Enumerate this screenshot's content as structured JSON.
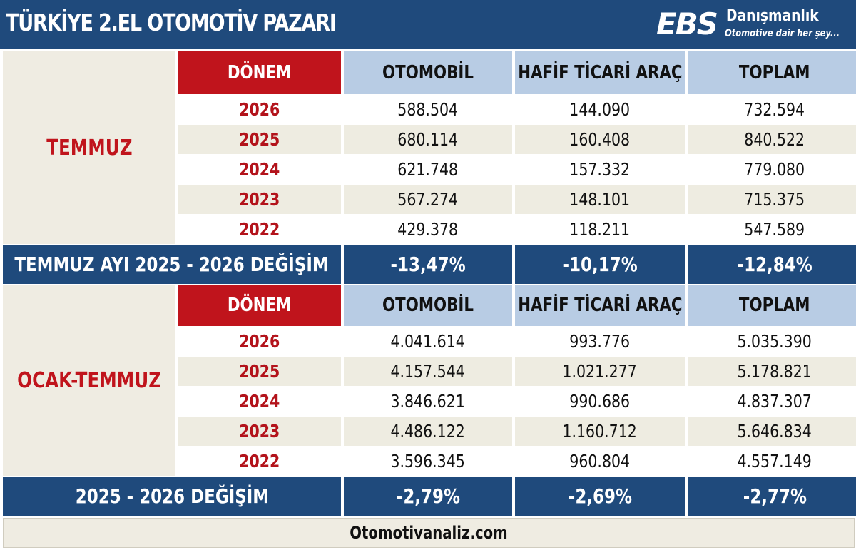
{
  "header": {
    "title": "TÜRKİYE 2.EL OTOMOTİV PAZARI",
    "logo": {
      "mark": "EBS",
      "brand": "Danışmanlık",
      "slogan": "Otomotive dair her şey..."
    }
  },
  "columns": {
    "period": "DÖNEM",
    "car": "OTOMOBİL",
    "lcv": "HAFİF TİCARİ ARAÇ",
    "total": "TOPLAM"
  },
  "sections": [
    {
      "label": "TEMMUZ",
      "rows": [
        {
          "year": "2026",
          "car": "588.504",
          "lcv": "144.090",
          "total": "732.594"
        },
        {
          "year": "2025",
          "car": "680.114",
          "lcv": "160.408",
          "total": "840.522"
        },
        {
          "year": "2024",
          "car": "621.748",
          "lcv": "157.332",
          "total": "779.080"
        },
        {
          "year": "2023",
          "car": "567.274",
          "lcv": "148.101",
          "total": "715.375"
        },
        {
          "year": "2022",
          "car": "429.378",
          "lcv": "118.211",
          "total": "547.589"
        }
      ],
      "change": {
        "label": "TEMMUZ AYI  2025 - 2026 DEĞİŞİM",
        "car": "-13,47%",
        "lcv": "-10,17%",
        "total": "-12,84%"
      }
    },
    {
      "label": "OCAK-TEMMUZ",
      "rows": [
        {
          "year": "2026",
          "car": "4.041.614",
          "lcv": "993.776",
          "total": "5.035.390"
        },
        {
          "year": "2025",
          "car": "4.157.544",
          "lcv": "1.021.277",
          "total": "5.178.821"
        },
        {
          "year": "2024",
          "car": "3.846.621",
          "lcv": "990.686",
          "total": "4.837.307"
        },
        {
          "year": "2023",
          "car": "4.486.122",
          "lcv": "1.160.712",
          "total": "5.646.834"
        },
        {
          "year": "2022",
          "car": "3.596.345",
          "lcv": "960.804",
          "total": "4.557.149"
        }
      ],
      "change": {
        "label": "2025 - 2026 DEĞİŞİM",
        "car": "-2,79%",
        "lcv": "-2,69%",
        "total": "-2,77%"
      }
    }
  ],
  "footer": {
    "text": "Otomotivanaliz.com"
  },
  "colors": {
    "navy": "#1f4a7c",
    "red": "#c0141c",
    "header_blue": "#b8cce4",
    "beige": "#eeece1"
  }
}
